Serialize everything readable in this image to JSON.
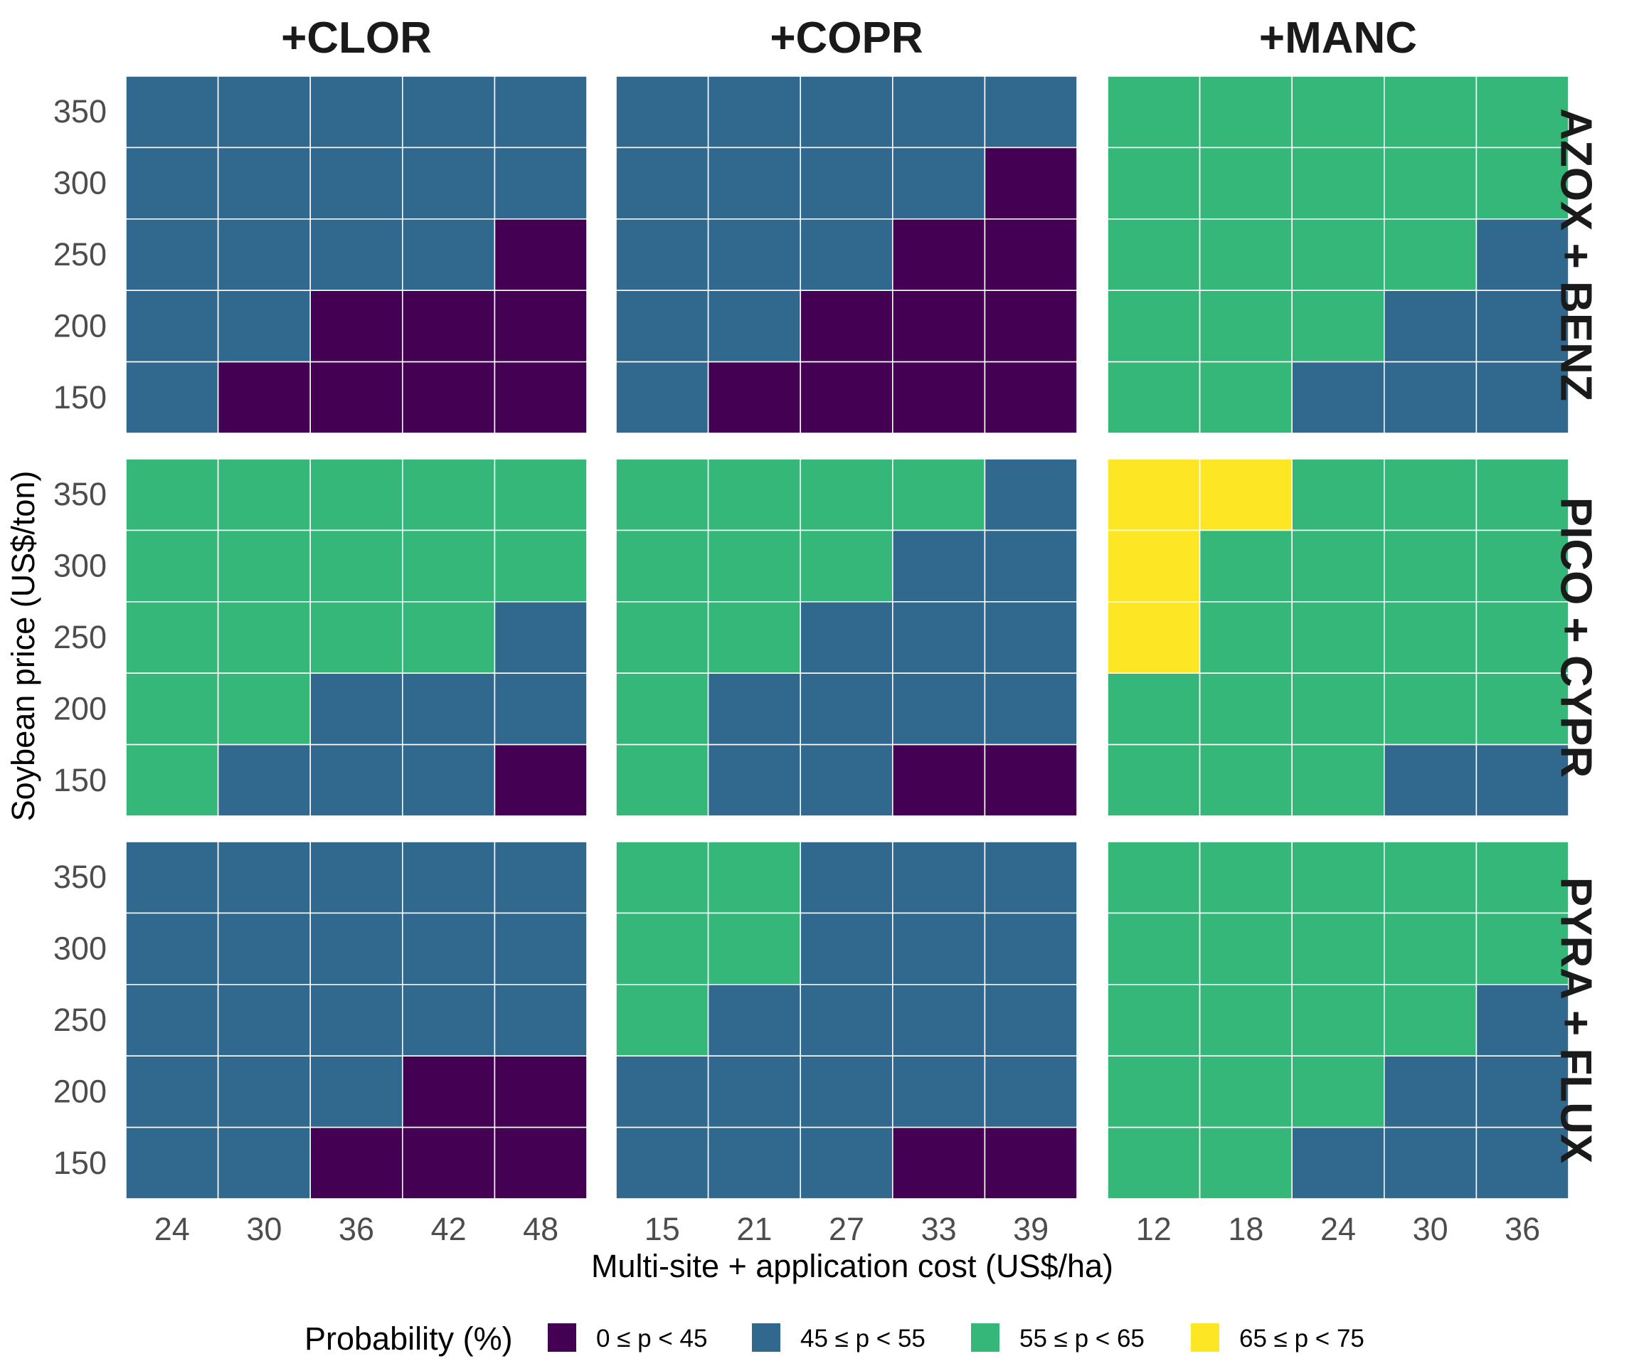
{
  "chart_data": {
    "type": "heatmap",
    "title": "",
    "xlabel": "Multi-site + application cost (US$/ha)",
    "ylabel": "Soybean price (US$/ton)",
    "y_categories": [
      "150",
      "200",
      "250",
      "300",
      "350"
    ],
    "column_facets": [
      {
        "label": "+CLOR",
        "x_categories": [
          "24",
          "30",
          "36",
          "42",
          "48"
        ]
      },
      {
        "label": "+COPR",
        "x_categories": [
          "15",
          "21",
          "27",
          "33",
          "39"
        ]
      },
      {
        "label": "+MANC",
        "x_categories": [
          "12",
          "18",
          "24",
          "30",
          "36"
        ]
      }
    ],
    "row_facets": [
      "AZOX + BENZ",
      "PICO + CYPR",
      "PYRA + FLUX"
    ],
    "legend": {
      "title": "Probability (%)",
      "position": "bottom",
      "classes": [
        {
          "label": "0 ≤ p < 45",
          "color": "#440154"
        },
        {
          "label": "45 ≤ p < 55",
          "color": "#31688E"
        },
        {
          "label": "55 ≤ p < 65",
          "color": "#35B779"
        },
        {
          "label": "65 ≤ p < 75",
          "color": "#FDE725"
        }
      ]
    },
    "cell_value_note": "Each cell holds the probability class index (0 = 0≤p<45, 1 = 45≤p<55, 2 = 55≤p<65, 3 = 65≤p<75). Grids are ordered [row_facet][column_facet][y from 350 down to 150][x ascending].",
    "cells": [
      [
        [
          [
            1,
            1,
            1,
            1,
            1
          ],
          [
            1,
            1,
            1,
            1,
            1
          ],
          [
            1,
            1,
            1,
            1,
            0
          ],
          [
            1,
            1,
            0,
            0,
            0
          ],
          [
            1,
            0,
            0,
            0,
            0
          ]
        ],
        [
          [
            1,
            1,
            1,
            1,
            1
          ],
          [
            1,
            1,
            1,
            1,
            0
          ],
          [
            1,
            1,
            1,
            0,
            0
          ],
          [
            1,
            1,
            0,
            0,
            0
          ],
          [
            1,
            0,
            0,
            0,
            0
          ]
        ],
        [
          [
            2,
            2,
            2,
            2,
            2
          ],
          [
            2,
            2,
            2,
            2,
            2
          ],
          [
            2,
            2,
            2,
            2,
            1
          ],
          [
            2,
            2,
            2,
            1,
            1
          ],
          [
            2,
            2,
            1,
            1,
            1
          ]
        ]
      ],
      [
        [
          [
            2,
            2,
            2,
            2,
            2
          ],
          [
            2,
            2,
            2,
            2,
            2
          ],
          [
            2,
            2,
            2,
            2,
            1
          ],
          [
            2,
            2,
            1,
            1,
            1
          ],
          [
            2,
            1,
            1,
            1,
            0
          ]
        ],
        [
          [
            2,
            2,
            2,
            2,
            1
          ],
          [
            2,
            2,
            2,
            1,
            1
          ],
          [
            2,
            2,
            1,
            1,
            1
          ],
          [
            2,
            1,
            1,
            1,
            1
          ],
          [
            2,
            1,
            1,
            0,
            0
          ]
        ],
        [
          [
            3,
            3,
            2,
            2,
            2
          ],
          [
            3,
            2,
            2,
            2,
            2
          ],
          [
            3,
            2,
            2,
            2,
            2
          ],
          [
            2,
            2,
            2,
            2,
            2
          ],
          [
            2,
            2,
            2,
            1,
            1
          ]
        ]
      ],
      [
        [
          [
            1,
            1,
            1,
            1,
            1
          ],
          [
            1,
            1,
            1,
            1,
            1
          ],
          [
            1,
            1,
            1,
            1,
            1
          ],
          [
            1,
            1,
            1,
            0,
            0
          ],
          [
            1,
            1,
            0,
            0,
            0
          ]
        ],
        [
          [
            2,
            2,
            1,
            1,
            1
          ],
          [
            2,
            2,
            1,
            1,
            1
          ],
          [
            2,
            1,
            1,
            1,
            1
          ],
          [
            1,
            1,
            1,
            1,
            1
          ],
          [
            1,
            1,
            1,
            0,
            0
          ]
        ],
        [
          [
            2,
            2,
            2,
            2,
            2
          ],
          [
            2,
            2,
            2,
            2,
            2
          ],
          [
            2,
            2,
            2,
            2,
            1
          ],
          [
            2,
            2,
            2,
            1,
            1
          ],
          [
            2,
            2,
            1,
            1,
            1
          ]
        ]
      ]
    ]
  }
}
